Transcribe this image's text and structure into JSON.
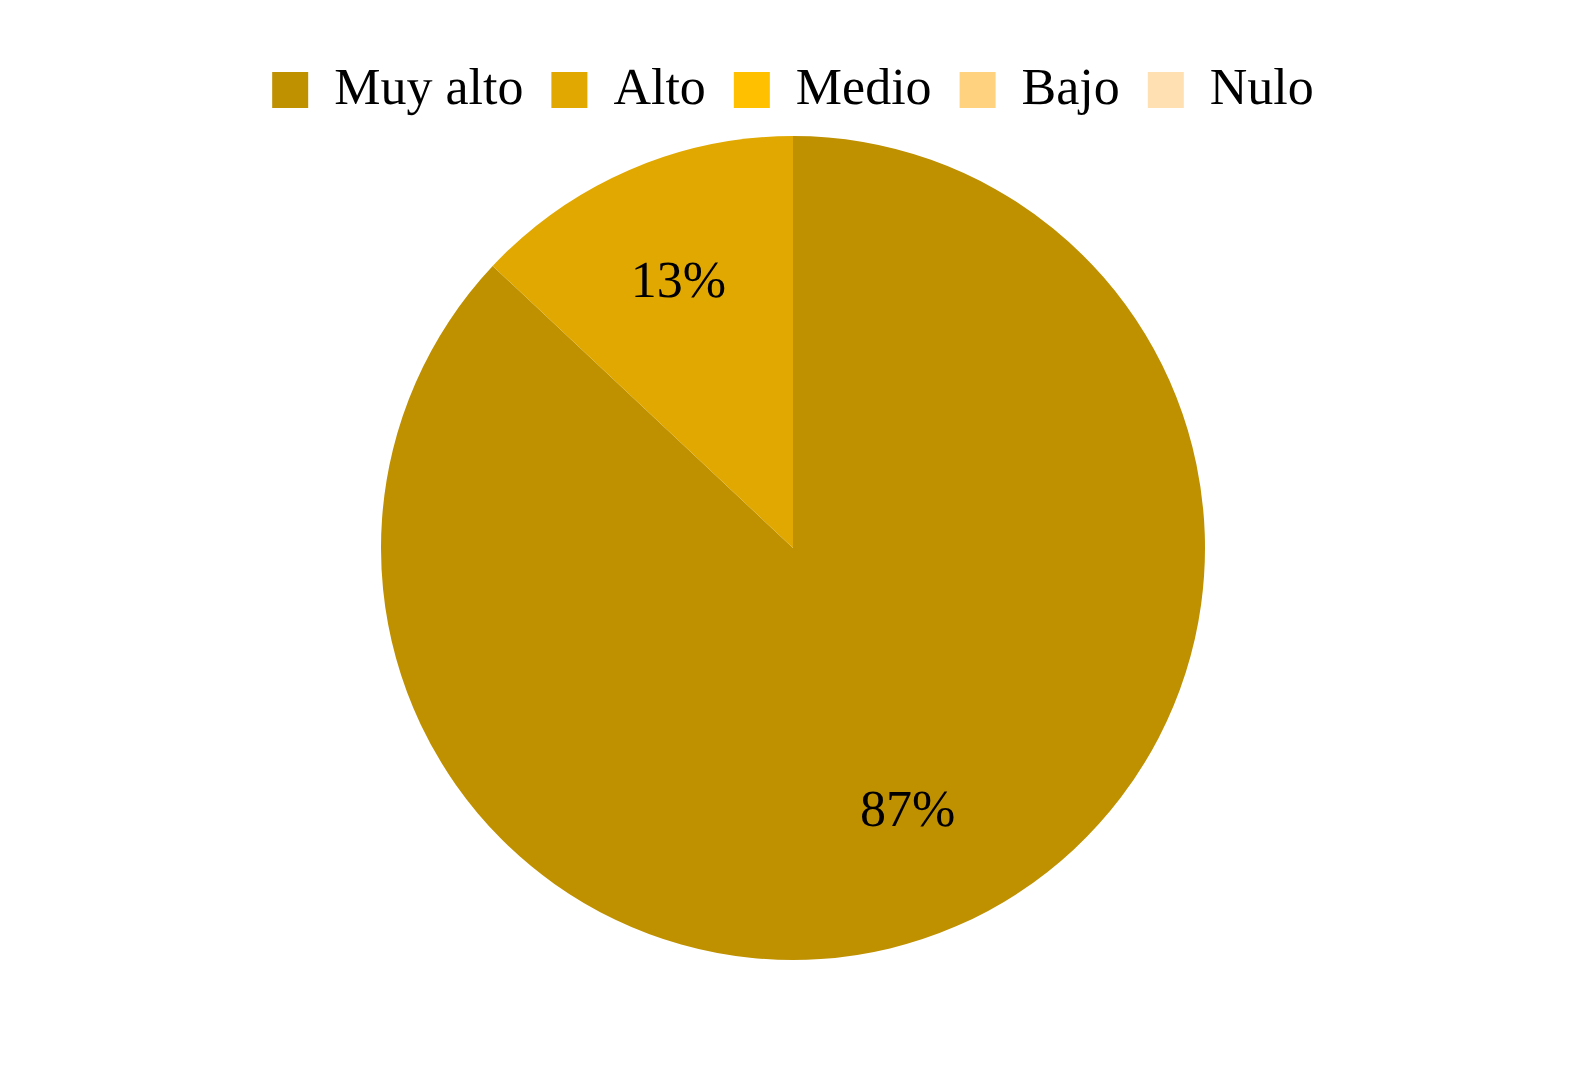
{
  "chart_data": {
    "type": "pie",
    "categories": [
      "Muy alto",
      "Alto",
      "Medio",
      "Bajo",
      "Nulo"
    ],
    "values": [
      87,
      13,
      0,
      0,
      0
    ],
    "colors": [
      "#bf9000",
      "#e0a800",
      "#ffc000",
      "#ffd27f",
      "#ffe0b3"
    ],
    "value_labels": [
      "87%",
      "13%",
      null,
      null,
      null
    ],
    "legend": "top"
  }
}
